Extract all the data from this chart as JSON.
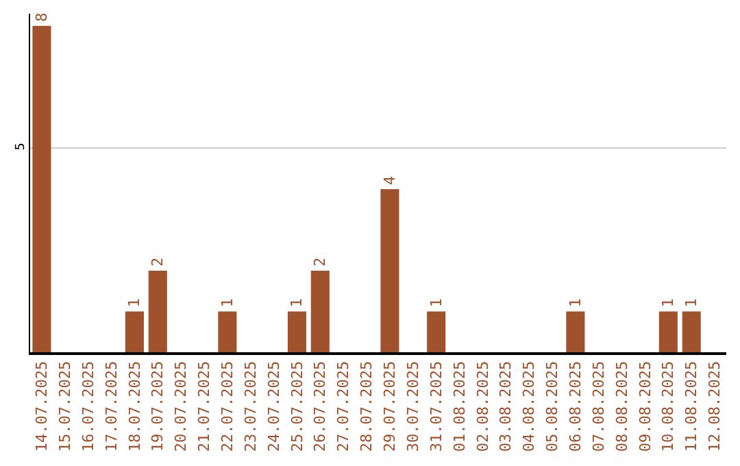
{
  "chart_data": {
    "type": "bar",
    "categories": [
      "14.07.2025",
      "15.07.2025",
      "16.07.2025",
      "17.07.2025",
      "18.07.2025",
      "19.07.2025",
      "20.07.2025",
      "21.07.2025",
      "22.07.2025",
      "23.07.2025",
      "24.07.2025",
      "25.07.2025",
      "26.07.2025",
      "27.07.2025",
      "28.07.2025",
      "29.07.2025",
      "30.07.2025",
      "31.07.2025",
      "01.08.2025",
      "02.08.2025",
      "03.08.2025",
      "04.08.2025",
      "05.08.2025",
      "06.08.2025",
      "07.08.2025",
      "08.08.2025",
      "09.08.2025",
      "10.08.2025",
      "11.08.2025",
      "12.08.2025"
    ],
    "values": [
      8,
      0,
      0,
      0,
      1,
      2,
      0,
      0,
      1,
      0,
      0,
      1,
      2,
      0,
      0,
      4,
      0,
      1,
      0,
      0,
      0,
      0,
      0,
      1,
      0,
      0,
      0,
      1,
      1,
      0
    ],
    "value_labels": [
      "8",
      null,
      null,
      null,
      "1",
      "2",
      null,
      null,
      "1",
      null,
      null,
      "1",
      "2",
      null,
      null,
      "4",
      null,
      "1",
      null,
      null,
      null,
      null,
      null,
      "1",
      null,
      null,
      null,
      "1",
      "1",
      null
    ],
    "color": "#a0522d",
    "ylim": [
      0,
      8.3
    ],
    "yticks": [
      5
    ],
    "grid": "y",
    "legend": false
  }
}
